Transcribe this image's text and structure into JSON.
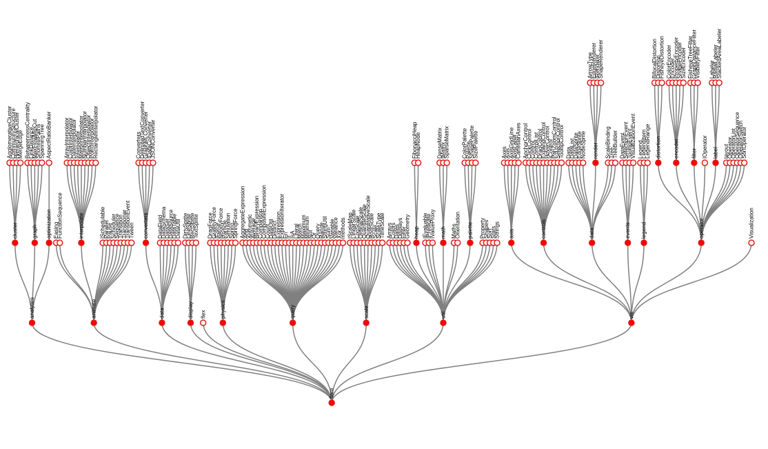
{
  "colors": {
    "link": "#808080",
    "node_stroke": "#e41a1c",
    "internal_fill": "#ff0000",
    "leaf_fill": "#ffffff",
    "text": "#000000"
  },
  "tree": {
    "name": "flare",
    "children": [
      {
        "name": "analytics",
        "children": [
          {
            "name": "cluster",
            "children": [
              {
                "name": "AgglomerativeCluster"
              },
              {
                "name": "CommunityStructure"
              },
              {
                "name": "HierarchicalCluster"
              },
              {
                "name": "MergeEdge"
              }
            ]
          },
          {
            "name": "graph",
            "children": [
              {
                "name": "BetweennessCentrality"
              },
              {
                "name": "LinkDistance"
              },
              {
                "name": "MaxFlowMinCut"
              },
              {
                "name": "ShortestPaths"
              },
              {
                "name": "SpanningTree"
              }
            ]
          },
          {
            "name": "optimization",
            "children": [
              {
                "name": "AspectRatioBanker"
              }
            ]
          }
        ]
      },
      {
        "name": "animate",
        "children": [
          {
            "name": "Easing"
          },
          {
            "name": "FunctionSequence"
          },
          {
            "name": "interpolate",
            "children": [
              {
                "name": "ArrayInterpolator"
              },
              {
                "name": "ColorInterpolator"
              },
              {
                "name": "DateInterpolator"
              },
              {
                "name": "Interpolator"
              },
              {
                "name": "MatrixInterpolator"
              },
              {
                "name": "NumberInterpolator"
              },
              {
                "name": "ObjectInterpolator"
              },
              {
                "name": "PointInterpolator"
              },
              {
                "name": "RectangleInterpolator"
              }
            ]
          },
          {
            "name": "ISchedulable"
          },
          {
            "name": "Parallel"
          },
          {
            "name": "Pause"
          },
          {
            "name": "Scheduler"
          },
          {
            "name": "Sequence"
          },
          {
            "name": "Transition"
          },
          {
            "name": "Transitioner"
          },
          {
            "name": "TransitionEvent"
          },
          {
            "name": "Tween"
          }
        ]
      },
      {
        "name": "data",
        "children": [
          {
            "name": "converters",
            "children": [
              {
                "name": "Converters"
              },
              {
                "name": "DelimitedTextConverter"
              },
              {
                "name": "GraphMLConverter"
              },
              {
                "name": "IDataConverter"
              },
              {
                "name": "JSONConverter"
              }
            ]
          },
          {
            "name": "DataField"
          },
          {
            "name": "DataSchema"
          },
          {
            "name": "DataSet"
          },
          {
            "name": "DataSource"
          },
          {
            "name": "DataTable"
          },
          {
            "name": "DataUtil"
          }
        ]
      },
      {
        "name": "display",
        "children": [
          {
            "name": "DirtySprite"
          },
          {
            "name": "LineSprite"
          },
          {
            "name": "RectSprite"
          },
          {
            "name": "TextSprite"
          }
        ]
      },
      {
        "name": "flex"
      },
      {
        "name": "physics",
        "children": [
          {
            "name": "DragForce"
          },
          {
            "name": "GravityForce"
          },
          {
            "name": "IForce"
          },
          {
            "name": "NBodyForce"
          },
          {
            "name": "Particle"
          },
          {
            "name": "Simulation"
          },
          {
            "name": "Spring"
          },
          {
            "name": "SpringForce"
          }
        ]
      },
      {
        "name": "query",
        "children": [
          {
            "name": "AggregateExpression"
          },
          {
            "name": "And"
          },
          {
            "name": "Arithmetic"
          },
          {
            "name": "Average"
          },
          {
            "name": "BinaryExpression"
          },
          {
            "name": "Comparison"
          },
          {
            "name": "CompositeExpression"
          },
          {
            "name": "Count"
          },
          {
            "name": "DateUtil"
          },
          {
            "name": "Distinct"
          },
          {
            "name": "Expression"
          },
          {
            "name": "ExpressionIterator"
          },
          {
            "name": "Fn"
          },
          {
            "name": "If"
          },
          {
            "name": "IsA"
          },
          {
            "name": "Literal"
          },
          {
            "name": "Match"
          },
          {
            "name": "Maximum"
          },
          {
            "name": "Minimum"
          },
          {
            "name": "Not"
          },
          {
            "name": "Or"
          },
          {
            "name": "Query"
          },
          {
            "name": "Range"
          },
          {
            "name": "StringUtil"
          },
          {
            "name": "Sum"
          },
          {
            "name": "Variable"
          },
          {
            "name": "Variance"
          },
          {
            "name": "Xor"
          },
          {
            "name": "methods"
          }
        ]
      },
      {
        "name": "scale",
        "children": [
          {
            "name": "IScaleMap"
          },
          {
            "name": "LinearScale"
          },
          {
            "name": "LogScale"
          },
          {
            "name": "OrdinalScale"
          },
          {
            "name": "QuantileScale"
          },
          {
            "name": "QuantitativeScale"
          },
          {
            "name": "RootScale"
          },
          {
            "name": "Scale"
          },
          {
            "name": "ScaleType"
          },
          {
            "name": "TimeScale"
          }
        ]
      },
      {
        "name": "util",
        "children": [
          {
            "name": "Arrays"
          },
          {
            "name": "Colors"
          },
          {
            "name": "Dates"
          },
          {
            "name": "Displays"
          },
          {
            "name": "Filter"
          },
          {
            "name": "Geometry"
          },
          {
            "name": "heap",
            "children": [
              {
                "name": "FibonacciHeap"
              },
              {
                "name": "HeapNode"
              }
            ]
          },
          {
            "name": "IEvaluable"
          },
          {
            "name": "IPredicate"
          },
          {
            "name": "IValueProxy"
          },
          {
            "name": "math",
            "children": [
              {
                "name": "DenseMatrix"
              },
              {
                "name": "IMatrix"
              },
              {
                "name": "SparseMatrix"
              }
            ]
          },
          {
            "name": "Maths"
          },
          {
            "name": "Orientation"
          },
          {
            "name": "palette",
            "children": [
              {
                "name": "ColorPalette"
              },
              {
                "name": "Palette"
              },
              {
                "name": "ShapePalette"
              },
              {
                "name": "SizePalette"
              }
            ]
          },
          {
            "name": "Property"
          },
          {
            "name": "Shapes"
          },
          {
            "name": "Sort"
          },
          {
            "name": "Stats"
          },
          {
            "name": "Strings"
          }
        ]
      },
      {
        "name": "vis",
        "children": [
          {
            "name": "axis",
            "children": [
              {
                "name": "Axes"
              },
              {
                "name": "Axis"
              },
              {
                "name": "AxisGridLine"
              },
              {
                "name": "AxisLabel"
              },
              {
                "name": "CartesianAxes"
              }
            ]
          },
          {
            "name": "controls",
            "children": [
              {
                "name": "AnchorControl"
              },
              {
                "name": "ClickControl"
              },
              {
                "name": "Control"
              },
              {
                "name": "ControlList"
              },
              {
                "name": "DragControl"
              },
              {
                "name": "ExpandControl"
              },
              {
                "name": "HoverControl"
              },
              {
                "name": "IControl"
              },
              {
                "name": "PanZoomControl"
              },
              {
                "name": "SelectionControl"
              },
              {
                "name": "TooltipControl"
              }
            ]
          },
          {
            "name": "data",
            "children": [
              {
                "name": "Data"
              },
              {
                "name": "DataList"
              },
              {
                "name": "DataSprite"
              },
              {
                "name": "EdgeSprite"
              },
              {
                "name": "NodeSprite"
              },
              {
                "name": "render",
                "children": [
                  {
                    "name": "ArrowType"
                  },
                  {
                    "name": "EdgeRenderer"
                  },
                  {
                    "name": "IRenderer"
                  },
                  {
                    "name": "ShapeRenderer"
                  }
                ]
              },
              {
                "name": "ScaleBinding"
              },
              {
                "name": "Tree"
              },
              {
                "name": "TreeBuilder"
              }
            ]
          },
          {
            "name": "events",
            "children": [
              {
                "name": "DataEvent"
              },
              {
                "name": "SelectionEvent"
              },
              {
                "name": "TooltipEvent"
              },
              {
                "name": "VisualizationEvent"
              }
            ]
          },
          {
            "name": "legend",
            "children": [
              {
                "name": "Legend"
              },
              {
                "name": "LegendItem"
              },
              {
                "name": "LegendRange"
              }
            ]
          },
          {
            "name": "operator",
            "children": [
              {
                "name": "distortion",
                "children": [
                  {
                    "name": "BifocalDistortion"
                  },
                  {
                    "name": "Distortion"
                  },
                  {
                    "name": "FisheyeDistortion"
                  }
                ]
              },
              {
                "name": "encoder",
                "children": [
                  {
                    "name": "ColorEncoder"
                  },
                  {
                    "name": "Encoder"
                  },
                  {
                    "name": "PropertyEncoder"
                  },
                  {
                    "name": "ShapeEncoder"
                  },
                  {
                    "name": "SizeEncoder"
                  }
                ]
              },
              {
                "name": "filter",
                "children": [
                  {
                    "name": "FisheyeTreeFilter"
                  },
                  {
                    "name": "GraphDistanceFilter"
                  },
                  {
                    "name": "VisibilityFilter"
                  }
                ]
              },
              {
                "name": "IOperator"
              },
              {
                "name": "label",
                "children": [
                  {
                    "name": "Labeler"
                  },
                  {
                    "name": "RadialLabeler"
                  },
                  {
                    "name": "StackedAreaLabeler"
                  }
                ]
              },
              {
                "name": "layout"
              },
              {
                "name": "Operator"
              },
              {
                "name": "OperatorList"
              },
              {
                "name": "OperatorSequence"
              },
              {
                "name": "OperatorSwitch"
              },
              {
                "name": "SortOperator"
              }
            ]
          },
          {
            "name": "Visualization"
          }
        ]
      }
    ]
  }
}
